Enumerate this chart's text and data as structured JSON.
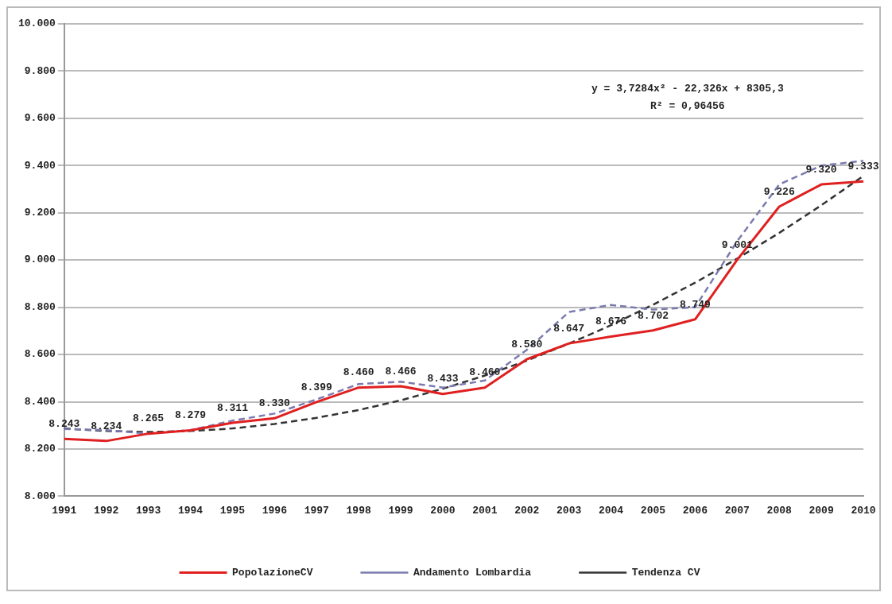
{
  "chart_data": {
    "type": "line",
    "categories": [
      "1991",
      "1992",
      "1993",
      "1994",
      "1995",
      "1996",
      "1997",
      "1998",
      "1999",
      "2000",
      "2001",
      "2002",
      "2003",
      "2004",
      "2005",
      "2006",
      "2007",
      "2008",
      "2009",
      "2010"
    ],
    "series": [
      {
        "name": "PopolazioneCV",
        "color": "#e02020",
        "line_style": "solid",
        "values": [
          8243,
          8234,
          8265,
          8279,
          8311,
          8330,
          8399,
          8460,
          8466,
          8433,
          8460,
          8580,
          8647,
          8676,
          8702,
          8749,
          9001,
          9226,
          9320,
          9333
        ],
        "value_labels": [
          "8.243",
          "8.234",
          "8.265",
          "8.279",
          "8.311",
          "8.330",
          "8.399",
          "8.460",
          "8.466",
          "8.433",
          "8.460",
          "8.580",
          "8.647",
          "8.676",
          "8.702",
          "8.749",
          "9.001",
          "9.226",
          "9.320",
          "9.333"
        ]
      },
      {
        "name": "Andamento Lombardia",
        "color": "#7b7bb0",
        "line_style": "dashed",
        "values": [
          8285,
          8280,
          8265,
          8280,
          8320,
          8350,
          8410,
          8475,
          8485,
          8460,
          8490,
          8620,
          8780,
          8810,
          8790,
          8800,
          9080,
          9320,
          9400,
          9420
        ]
      },
      {
        "name": "Tendenza CV",
        "color": "#333333",
        "line_style": "dashed",
        "values": [
          8287,
          8276,
          8272,
          8276,
          8287,
          8306,
          8332,
          8365,
          8406,
          8455,
          8511,
          8574,
          8646,
          8724,
          8811,
          8904,
          9006,
          9115,
          9232,
          9356
        ]
      }
    ],
    "ylim": [
      8000,
      10000
    ],
    "yticks": [
      {
        "value": 8000,
        "label": "8.000"
      },
      {
        "value": 8200,
        "label": "8.200"
      },
      {
        "value": 8400,
        "label": "8.400"
      },
      {
        "value": 8600,
        "label": "8.600"
      },
      {
        "value": 8800,
        "label": "8.800"
      },
      {
        "value": 9000,
        "label": "9.000"
      },
      {
        "value": 9200,
        "label": "9.200"
      },
      {
        "value": 9400,
        "label": "9.400"
      },
      {
        "value": 9600,
        "label": "9.600"
      },
      {
        "value": 9800,
        "label": "9.800"
      },
      {
        "value": 10000,
        "label": "10.000"
      }
    ],
    "annotations": [
      "y = 3,7284x² - 22,326x + 8305,3",
      "R² = 0,96456"
    ],
    "grid": "y",
    "legend": "bottom",
    "marker": "none"
  }
}
